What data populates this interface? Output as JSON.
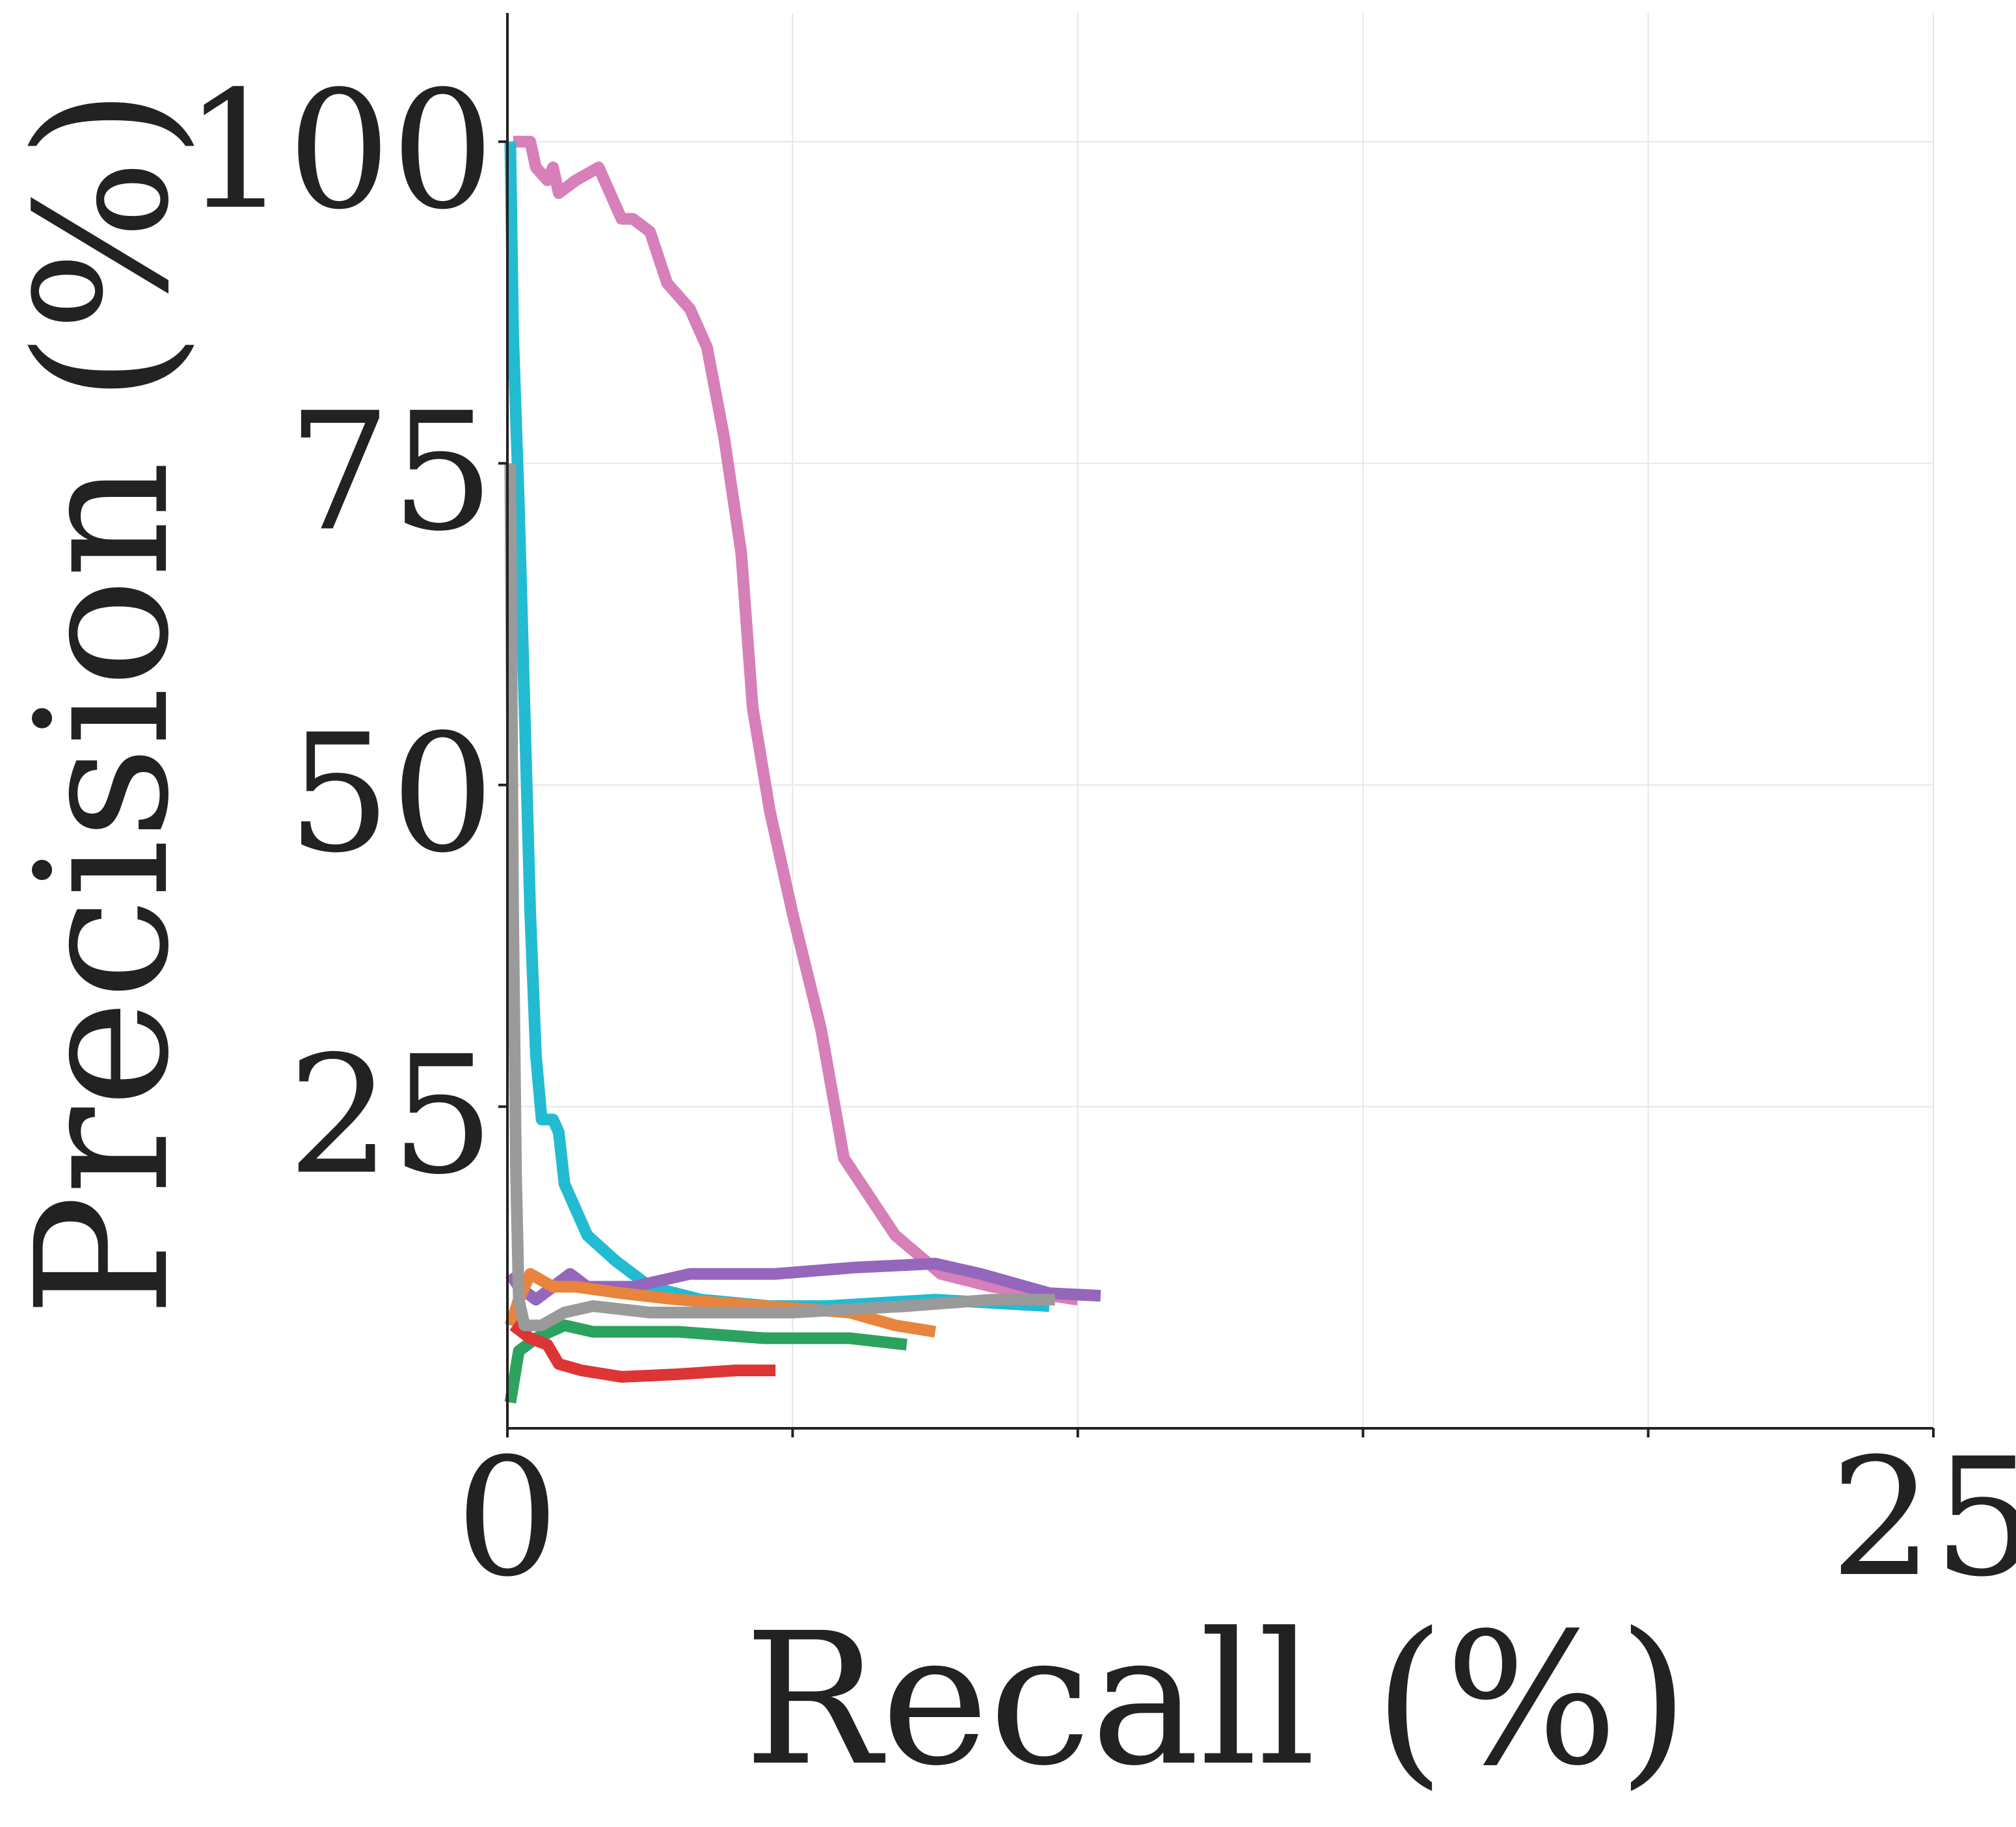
{
  "chart_data": {
    "type": "line",
    "title": "",
    "xlabel": "Recall (%)",
    "ylabel": "Precision (%)",
    "xlim": [
      0,
      25
    ],
    "ylim": [
      0,
      110
    ],
    "grid": true,
    "x_ticks": [
      {
        "value": 0,
        "label": "0"
      },
      {
        "value": 5,
        "label": ""
      },
      {
        "value": 10,
        "label": ""
      },
      {
        "value": 15,
        "label": ""
      },
      {
        "value": 20,
        "label": ""
      },
      {
        "value": 25,
        "label": "25"
      }
    ],
    "y_ticks": [
      {
        "value": 25,
        "label": "25"
      },
      {
        "value": 50,
        "label": "50"
      },
      {
        "value": 75,
        "label": "75"
      },
      {
        "value": 100,
        "label": "100"
      }
    ],
    "series": [
      {
        "name": "pink",
        "color": "#d67fb8",
        "points": [
          [
            0.1,
            100
          ],
          [
            0.4,
            100
          ],
          [
            0.5,
            98
          ],
          [
            0.7,
            97
          ],
          [
            0.8,
            98
          ],
          [
            0.9,
            96
          ],
          [
            1.2,
            97
          ],
          [
            1.6,
            98
          ],
          [
            1.8,
            96
          ],
          [
            2.0,
            94
          ],
          [
            2.2,
            94
          ],
          [
            2.5,
            93
          ],
          [
            2.8,
            89
          ],
          [
            3.0,
            88
          ],
          [
            3.2,
            87
          ],
          [
            3.5,
            84
          ],
          [
            3.8,
            77
          ],
          [
            4.1,
            68
          ],
          [
            4.3,
            56
          ],
          [
            4.6,
            48
          ],
          [
            5.0,
            40
          ],
          [
            5.5,
            31
          ],
          [
            5.9,
            21
          ],
          [
            6.8,
            15
          ],
          [
            7.6,
            12
          ],
          [
            8.5,
            11
          ],
          [
            10.0,
            10
          ]
        ]
      },
      {
        "name": "cyan",
        "color": "#22bbd2",
        "points": [
          [
            0.05,
            100
          ],
          [
            0.1,
            85
          ],
          [
            0.2,
            72
          ],
          [
            0.3,
            56
          ],
          [
            0.4,
            40
          ],
          [
            0.5,
            29
          ],
          [
            0.6,
            24
          ],
          [
            0.8,
            24
          ],
          [
            0.9,
            23
          ],
          [
            1.0,
            19
          ],
          [
            1.2,
            17
          ],
          [
            1.4,
            15
          ],
          [
            1.9,
            13
          ],
          [
            2.5,
            11
          ],
          [
            3.4,
            10
          ],
          [
            4.6,
            9.5
          ],
          [
            5.6,
            9.5
          ],
          [
            7.5,
            10
          ],
          [
            9.5,
            9.5
          ]
        ]
      },
      {
        "name": "purple",
        "color": "#9467bd",
        "points": [
          [
            0.05,
            12
          ],
          [
            0.2,
            11
          ],
          [
            0.5,
            10
          ],
          [
            0.8,
            11
          ],
          [
            1.1,
            12
          ],
          [
            1.4,
            11
          ],
          [
            2.2,
            11
          ],
          [
            3.2,
            12
          ],
          [
            4.7,
            12
          ],
          [
            6.1,
            12.5
          ],
          [
            7.5,
            12.8
          ],
          [
            8.3,
            12
          ],
          [
            9.5,
            10.5
          ],
          [
            10.4,
            10.3
          ]
        ]
      },
      {
        "name": "orange",
        "color": "#e8843e",
        "points": [
          [
            0.05,
            8
          ],
          [
            0.2,
            10
          ],
          [
            0.4,
            12
          ],
          [
            0.8,
            11
          ],
          [
            1.2,
            11
          ],
          [
            2.0,
            10.5
          ],
          [
            3.0,
            10
          ],
          [
            4.5,
            9.5
          ],
          [
            6.0,
            9
          ],
          [
            6.8,
            8
          ],
          [
            7.5,
            7.5
          ]
        ]
      },
      {
        "name": "green",
        "color": "#2ca25f",
        "points": [
          [
            0.05,
            2
          ],
          [
            0.2,
            6
          ],
          [
            0.5,
            7
          ],
          [
            1.0,
            8
          ],
          [
            1.5,
            7.5
          ],
          [
            2.0,
            7.5
          ],
          [
            3.0,
            7.5
          ],
          [
            4.5,
            7
          ],
          [
            6.0,
            7
          ],
          [
            7.0,
            6.5
          ]
        ]
      },
      {
        "name": "red",
        "color": "#dd3535",
        "points": [
          [
            0.1,
            8
          ],
          [
            0.4,
            7
          ],
          [
            0.7,
            6.5
          ],
          [
            0.9,
            5
          ],
          [
            1.3,
            4.5
          ],
          [
            2.0,
            4
          ],
          [
            3.0,
            4.2
          ],
          [
            4.0,
            4.5
          ],
          [
            4.7,
            4.5
          ]
        ]
      },
      {
        "name": "gray",
        "color": "#9a9a9a",
        "points": [
          [
            0.05,
            75
          ],
          [
            0.1,
            40
          ],
          [
            0.15,
            20
          ],
          [
            0.2,
            10
          ],
          [
            0.3,
            8
          ],
          [
            0.6,
            8
          ],
          [
            1.0,
            9
          ],
          [
            1.5,
            9.5
          ],
          [
            2.5,
            9
          ],
          [
            3.5,
            9
          ],
          [
            5.0,
            9
          ],
          [
            7.0,
            9.5
          ],
          [
            8.5,
            10
          ],
          [
            9.6,
            10
          ]
        ]
      }
    ]
  }
}
